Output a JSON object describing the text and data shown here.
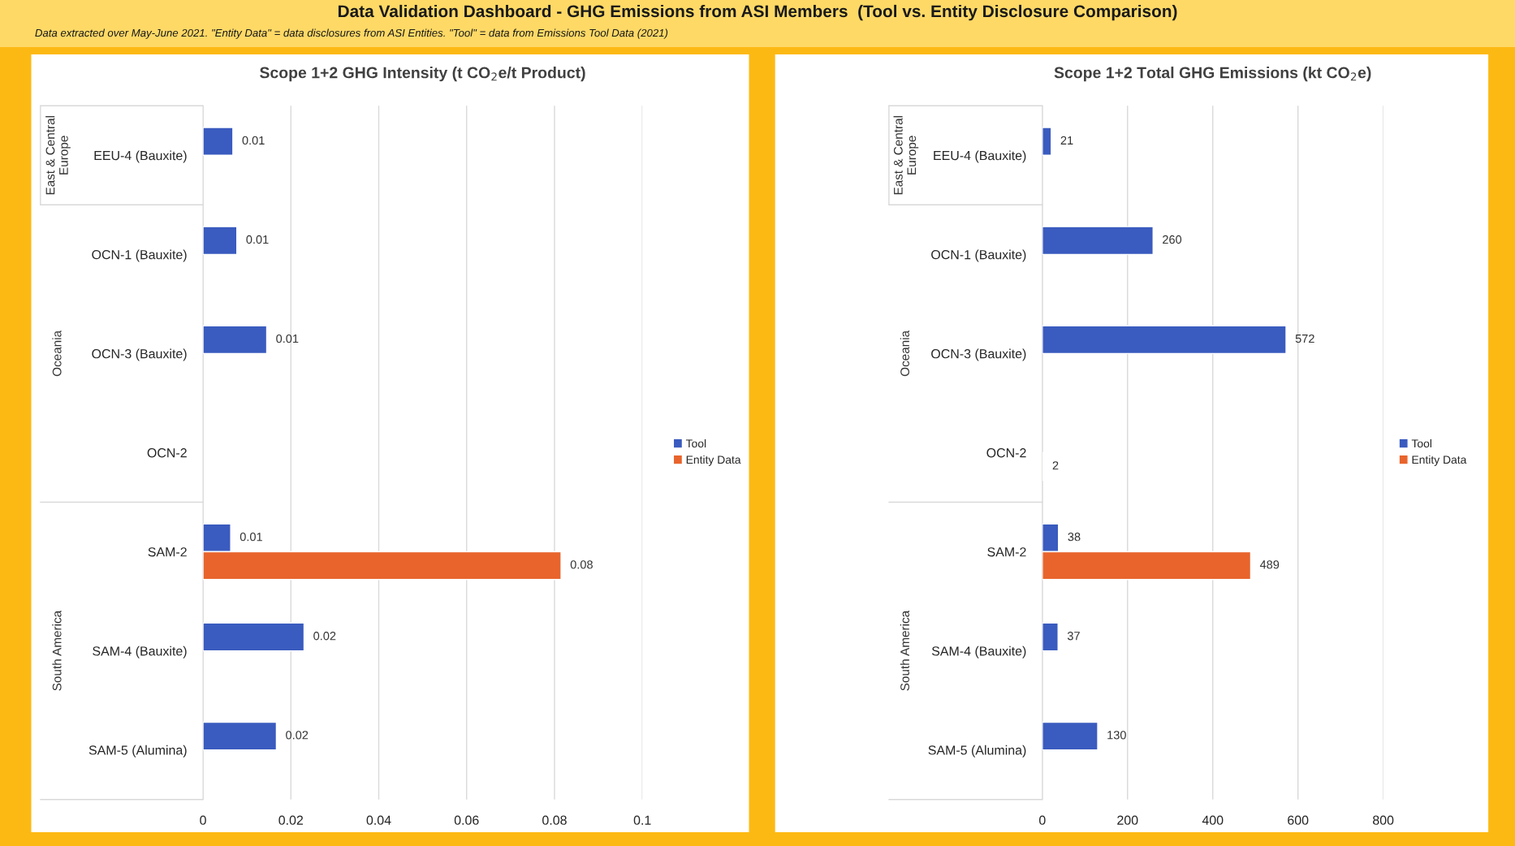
{
  "chart_data": [
    {
      "type": "bar",
      "orientation": "horizontal",
      "title": "Scope 1+2 GHG Intensity (t CO$_{2}$e/t Product)",
      "categories": [
        "EEU-4 (Bauxite)",
        "OCN-1 (Bauxite)",
        "OCN-3 (Bauxite)",
        "OCN-2",
        "SAM-2",
        "SAM-4 (Bauxite)",
        "SAM-5 (Alumina)"
      ],
      "series": [
        {
          "name": "Tool",
          "color": "#3a5bbf",
          "values": [
            0.0068,
            0.0077,
            0.0145,
            null,
            0.0063,
            0.023,
            0.0167
          ],
          "value_labels": [
            "0.01",
            "0.01",
            "0.01",
            null,
            "0.01",
            "0.02",
            "0.02"
          ]
        },
        {
          "name": "Entity Data",
          "color": "#e8642c",
          "values": [
            null,
            null,
            null,
            null,
            0.0815,
            null,
            null
          ],
          "value_labels": [
            null,
            null,
            null,
            null,
            "0.08",
            null,
            null
          ]
        }
      ],
      "xlim": [
        0,
        0.1
      ],
      "xticks": [
        0,
        0.02,
        0.04,
        0.06,
        0.08,
        0.1
      ],
      "grid": "x",
      "legend": "right",
      "annotations": [
        "Data Validation Dashboard - GHG Emissions from ASI Members  (Tool vs. Entity Disclosure Comparison)",
        "Data extracted over May-June 2021. \"Entity Data\" = data disclosures from ASI Entities. \"Tool\" = data from Emissions Tool Data (2021)",
        "East & Central\nEurope",
        "Oceania",
        "South America"
      ]
    },
    {
      "type": "bar",
      "orientation": "horizontal",
      "title": "Scope 1+2 Total GHG Emissions (kt CO$_{2}$e)",
      "categories": [
        "EEU-4 (Bauxite)",
        "OCN-1 (Bauxite)",
        "OCN-3 (Bauxite)",
        "OCN-2",
        "SAM-2",
        "SAM-4 (Bauxite)",
        "SAM-5 (Alumina)"
      ],
      "series": [
        {
          "name": "Tool",
          "color": "#3a5bbf",
          "values": [
            21,
            260,
            572,
            null,
            38,
            37,
            130
          ]
        },
        {
          "name": "Entity Data",
          "color": "#e8642c",
          "values": [
            null,
            null,
            null,
            2,
            489,
            null,
            null
          ]
        }
      ],
      "xlim": [
        0,
        800
      ],
      "xticks": [
        0,
        200,
        400,
        600,
        800
      ],
      "grid": "x",
      "legend": "right",
      "data_labels": true,
      "annotations": [
        "East & Central\nEurope",
        "Oceania",
        "South America"
      ]
    }
  ]
}
